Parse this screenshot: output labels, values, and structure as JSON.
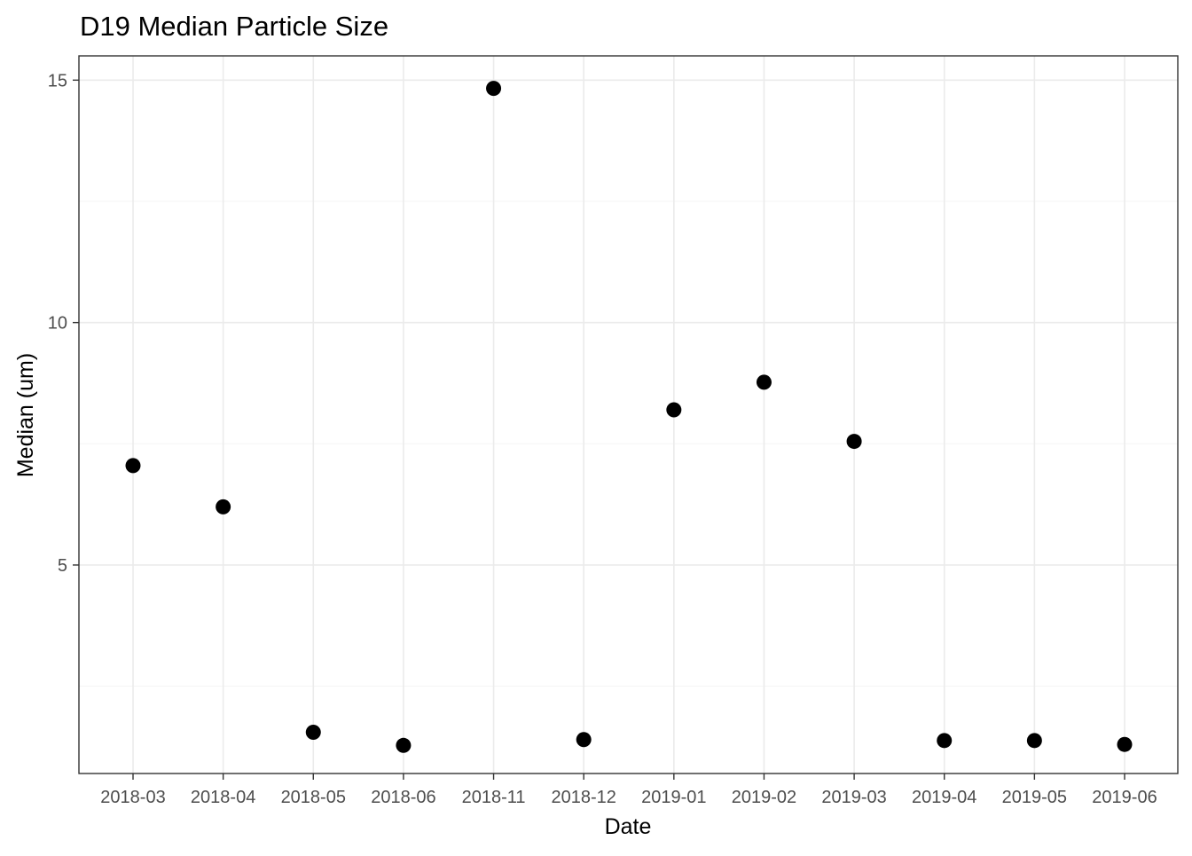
{
  "chart_data": {
    "type": "scatter",
    "title": "D19 Median Particle Size",
    "xlabel": "Date",
    "ylabel": "Median (um)",
    "categories": [
      "2018-03",
      "2018-04",
      "2018-05",
      "2018-06",
      "2018-11",
      "2018-12",
      "2019-01",
      "2019-02",
      "2019-03",
      "2019-04",
      "2019-05",
      "2019-06"
    ],
    "values": [
      7.05,
      6.2,
      1.55,
      1.28,
      14.83,
      1.4,
      8.2,
      8.77,
      7.55,
      1.38,
      1.38,
      1.3
    ],
    "ylim": [
      0.7,
      15.5
    ],
    "yticks": [
      5,
      10,
      15
    ],
    "yticks_minor": [
      2.5,
      7.5,
      12.5
    ],
    "ytick_labels": [
      "5",
      "10",
      "15"
    ],
    "grid": true,
    "point_color": "#000000"
  }
}
